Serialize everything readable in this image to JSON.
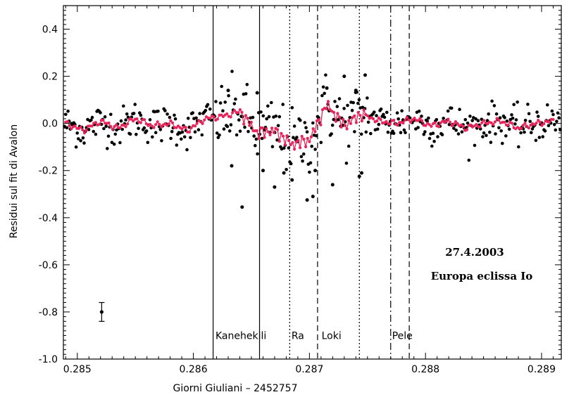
{
  "chart_data": {
    "type": "scatter",
    "title": "",
    "xlabel": "Giorni Giuliani – 2452757",
    "ylabel": "Residui sul fit di Avalon",
    "xlim": [
      0.28488,
      0.28917
    ],
    "ylim": [
      -1.0,
      0.5
    ],
    "grid": false,
    "x_ticks": [
      0.285,
      0.286,
      0.287,
      0.288,
      0.289
    ],
    "x_tick_labels": [
      "0.285",
      "0.286",
      "0.287",
      "0.288",
      "0.289"
    ],
    "y_ticks": [
      -1.0,
      -0.8,
      -0.6,
      -0.4,
      -0.2,
      0.0,
      0.2,
      0.4
    ],
    "y_tick_labels": [
      "-1.0",
      "-0.8",
      "-0.6",
      "-0.4",
      "-0.2",
      "0.0",
      "0.2",
      "0.4"
    ],
    "raw_residuals": {
      "x_start": 0.28489,
      "x_end": 0.28916,
      "count": 430,
      "noise_sigma": 0.04,
      "color": "#000000",
      "outliers": [
        {
          "x": 0.28642,
          "y": -0.355
        },
        {
          "x": 0.28633,
          "y": -0.18
        },
        {
          "x": 0.2866,
          "y": -0.2
        },
        {
          "x": 0.2867,
          "y": -0.27
        },
        {
          "x": 0.28678,
          "y": -0.21
        },
        {
          "x": 0.28685,
          "y": -0.24
        },
        {
          "x": 0.28698,
          "y": -0.325
        },
        {
          "x": 0.28703,
          "y": -0.31
        },
        {
          "x": 0.28705,
          "y": -0.2
        },
        {
          "x": 0.2872,
          "y": -0.26
        },
        {
          "x": 0.28743,
          "y": -0.225
        },
        {
          "x": 0.28745,
          "y": -0.21
        },
        {
          "x": 0.28715,
          "y": 0.15
        },
        {
          "x": 0.2873,
          "y": 0.2
        },
        {
          "x": 0.28748,
          "y": 0.205
        },
        {
          "x": 0.2874,
          "y": 0.14
        },
        {
          "x": 0.2863,
          "y": 0.14
        },
        {
          "x": 0.28655,
          "y": 0.13
        }
      ]
    },
    "smoothed": {
      "color": "#e8245a",
      "x": [
        0.2849,
        0.28505,
        0.2852,
        0.28535,
        0.2855,
        0.28565,
        0.2858,
        0.28595,
        0.2861,
        0.28625,
        0.2864,
        0.28655,
        0.2867,
        0.28685,
        0.287,
        0.28715,
        0.2873,
        0.28745,
        0.2876,
        0.28775,
        0.2879,
        0.28805,
        0.2882,
        0.28835,
        0.2885,
        0.28865,
        0.2888,
        0.28895,
        0.2891
      ],
      "y": [
        0.0,
        -0.03,
        0.01,
        -0.02,
        0.02,
        -0.01,
        0.0,
        -0.03,
        0.02,
        0.03,
        0.05,
        -0.04,
        -0.03,
        -0.09,
        -0.07,
        0.08,
        -0.01,
        0.04,
        0.01,
        0.0,
        0.02,
        -0.01,
        0.01,
        -0.02,
        0.0,
        0.01,
        -0.02,
        0.0,
        0.01
      ]
    },
    "event_lines": [
      {
        "name": "Kanehekili",
        "x": 0.28617,
        "style": "solid",
        "label_x": 0.28641
      },
      {
        "name": "",
        "x": 0.28657,
        "style": "solid",
        "label_x": null
      },
      {
        "name": "Ra",
        "x": 0.28683,
        "style": "dotted",
        "label_x": 0.2869
      },
      {
        "name": "Loki",
        "x": 0.28707,
        "style": "dashed",
        "label_x": 0.28719
      },
      {
        "name": "",
        "x": 0.28743,
        "style": "dotted",
        "label_x": null
      },
      {
        "name": "Pele",
        "x": 0.2877,
        "style": "dashdot",
        "label_x": 0.2878
      },
      {
        "name": "",
        "x": 0.28786,
        "style": "dashed",
        "label_x": null
      }
    ],
    "marker_label_y": -0.9,
    "error_bar": {
      "x": 0.28521,
      "y": -0.8,
      "err": 0.04
    },
    "annotations": [
      "27.4.2003",
      "Europa eclissa Io"
    ]
  }
}
